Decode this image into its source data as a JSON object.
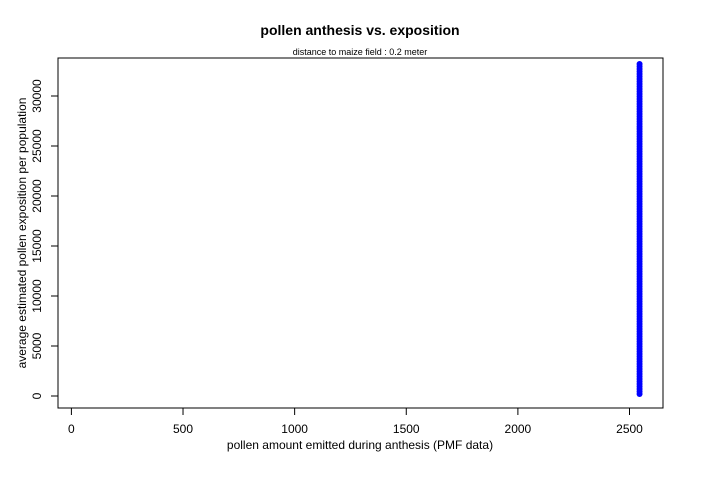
{
  "chart_data": {
    "type": "scatter",
    "title": "pollen anthesis vs. exposition",
    "subtitle": "distance to maize field :  0.2 meter",
    "xlabel": "pollen amount emitted during anthesis (PMF data)",
    "ylabel": "average estimated pollen exposition per population",
    "ylabel_color": "#0000ff",
    "point_color": "#0000ff",
    "xlim": [
      -60,
      2650
    ],
    "ylim": [
      -1200,
      33800
    ],
    "xticks": [
      0,
      500,
      1000,
      1500,
      2000,
      2500
    ],
    "yticks": [
      0,
      5000,
      10000,
      15000,
      20000,
      25000,
      30000
    ],
    "grid": false,
    "legend": "none",
    "series": [
      {
        "x_constant": 2545,
        "y_min": 200,
        "y_max": 33400,
        "y_step": 250
      }
    ]
  }
}
